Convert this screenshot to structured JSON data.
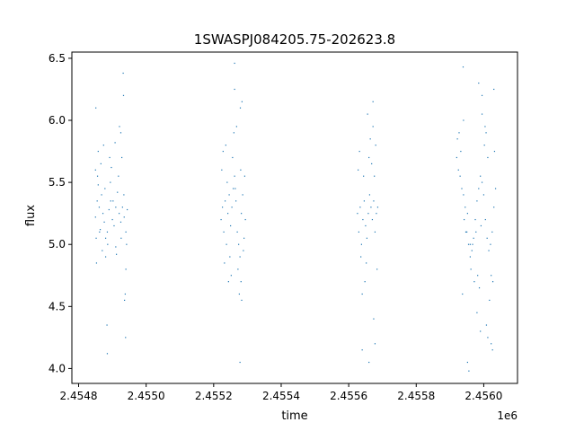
{
  "chart_data": {
    "type": "scatter",
    "title": "1SWASPJ084205.75-202623.8",
    "xlabel": "time",
    "ylabel": "flux",
    "x_offset_label": "1e6",
    "xlim": [
      2454780,
      2456100
    ],
    "ylim": [
      3.88,
      6.55
    ],
    "x_ticks": [
      {
        "value": 2454800,
        "label": "2.4548"
      },
      {
        "value": 2455000,
        "label": "2.4550"
      },
      {
        "value": 2455200,
        "label": "2.4552"
      },
      {
        "value": 2455400,
        "label": "2.4554"
      },
      {
        "value": 2455600,
        "label": "2.4556"
      },
      {
        "value": 2455800,
        "label": "2.4558"
      },
      {
        "value": 2456000,
        "label": "2.4560"
      }
    ],
    "y_ticks": [
      {
        "value": 4.0,
        "label": "4.0"
      },
      {
        "value": 4.5,
        "label": "4.5"
      },
      {
        "value": 5.0,
        "label": "5.0"
      },
      {
        "value": 5.5,
        "label": "5.5"
      },
      {
        "value": 6.0,
        "label": "6.0"
      },
      {
        "value": 6.5,
        "label": "6.5"
      }
    ],
    "grid": false,
    "legend": "none",
    "marker_color": "#1f77b4",
    "series": [
      {
        "x": [
          2454850,
          2454852,
          2454855,
          2454858,
          2454861,
          2454864,
          2454868,
          2454872,
          2454876,
          2454880,
          2454885,
          2454890,
          2454895,
          2454900,
          2454905,
          2454910,
          2454915,
          2454920,
          2454925,
          2454930,
          2454935,
          2454940,
          2454944,
          2454850,
          2454856,
          2454862,
          2454870,
          2454878,
          2454886,
          2454894,
          2454902,
          2454910,
          2454918,
          2454926,
          2454934,
          2454942,
          2454853,
          2454866,
          2454880,
          2454897,
          2454912,
          2454928,
          2454940,
          2454858,
          2454874,
          2454892,
          2454908,
          2454925,
          2454938,
          2454851,
          2454884,
          2454921,
          2454932,
          2454936,
          2454939,
          2454885,
          2454933,
          2455222,
          2455226,
          2455230,
          2455234,
          2455238,
          2455242,
          2455246,
          2455250,
          2455254,
          2455258,
          2455262,
          2455266,
          2455270,
          2455274,
          2455278,
          2455282,
          2455286,
          2455290,
          2455294,
          2455224,
          2455232,
          2455240,
          2455248,
          2455256,
          2455264,
          2455272,
          2455280,
          2455288,
          2455228,
          2455244,
          2455260,
          2455276,
          2455292,
          2455236,
          2455268,
          2455284,
          2455252,
          2455279,
          2455262,
          2455281,
          2455283,
          2455262,
          2455278,
          2455626,
          2455630,
          2455634,
          2455638,
          2455642,
          2455646,
          2455650,
          2455654,
          2455658,
          2455662,
          2455666,
          2455670,
          2455674,
          2455678,
          2455682,
          2455686,
          2455628,
          2455636,
          2455644,
          2455652,
          2455660,
          2455668,
          2455676,
          2455684,
          2455632,
          2455648,
          2455664,
          2455680,
          2455640,
          2455672,
          2455656,
          2455674,
          2455678,
          2455640,
          2455672,
          2455660,
          2455920,
          2455925,
          2455930,
          2455935,
          2455940,
          2455945,
          2455950,
          2455955,
          2455960,
          2455965,
          2455970,
          2455975,
          2455980,
          2455985,
          2455990,
          2455995,
          2456000,
          2456005,
          2456010,
          2456015,
          2456020,
          2456025,
          2456030,
          2456035,
          2455922,
          2455932,
          2455942,
          2455952,
          2455962,
          2455972,
          2455982,
          2455992,
          2456002,
          2456012,
          2456022,
          2456032,
          2455927,
          2455947,
          2455967,
          2455987,
          2456007,
          2456027,
          2455937,
          2455977,
          2456017,
          2455940,
          2455960,
          2455980,
          2455990,
          2455995,
          2456004,
          2456008,
          2456012,
          2456022,
          2455985,
          2456026,
          2455939,
          2455956,
          2455995,
          2455952,
          2456030
        ],
        "y": [
          5.22,
          5.05,
          5.35,
          5.48,
          5.3,
          5.12,
          5.4,
          5.25,
          5.18,
          5.05,
          5.1,
          5.28,
          5.35,
          5.2,
          5.15,
          5.3,
          5.42,
          5.25,
          5.18,
          5.3,
          5.22,
          5.1,
          5.28,
          5.6,
          5.55,
          5.1,
          4.95,
          5.45,
          5.0,
          5.5,
          5.35,
          4.98,
          5.55,
          5.05,
          5.4,
          5.0,
          4.85,
          5.65,
          4.9,
          5.62,
          4.92,
          5.7,
          4.8,
          5.75,
          5.8,
          5.7,
          5.82,
          5.9,
          4.6,
          6.1,
          4.35,
          5.95,
          6.38,
          4.55,
          4.25,
          4.12,
          6.2,
          5.2,
          5.3,
          5.1,
          5.35,
          5.0,
          5.25,
          5.4,
          5.15,
          5.3,
          5.45,
          5.55,
          5.35,
          5.1,
          5.0,
          4.9,
          5.25,
          5.4,
          5.05,
          5.2,
          5.6,
          4.85,
          5.5,
          4.9,
          5.7,
          5.45,
          4.8,
          5.6,
          4.95,
          5.75,
          4.7,
          5.9,
          4.6,
          5.55,
          5.8,
          5.95,
          6.15,
          4.75,
          6.1,
          6.25,
          4.7,
          4.55,
          6.46,
          4.05,
          5.25,
          5.1,
          5.3,
          5.0,
          5.2,
          5.35,
          5.15,
          5.05,
          5.25,
          5.4,
          5.3,
          5.2,
          5.35,
          5.1,
          5.25,
          5.3,
          5.6,
          4.9,
          5.55,
          4.85,
          5.7,
          5.65,
          5.55,
          4.8,
          5.75,
          4.7,
          5.85,
          5.8,
          4.6,
          5.95,
          6.05,
          4.4,
          4.2,
          4.15,
          6.15,
          4.05,
          5.7,
          5.6,
          5.55,
          5.45,
          5.4,
          5.3,
          5.1,
          5.0,
          4.9,
          4.95,
          5.05,
          5.2,
          5.35,
          5.45,
          5.55,
          5.5,
          5.4,
          5.2,
          5.05,
          4.95,
          5.0,
          5.1,
          5.3,
          5.45,
          5.85,
          5.75,
          5.2,
          5.25,
          4.8,
          4.7,
          4.75,
          5.15,
          5.8,
          5.7,
          4.75,
          5.75,
          5.9,
          5.1,
          5.0,
          4.65,
          5.9,
          4.7,
          4.6,
          5.1,
          4.55,
          6.0,
          5.0,
          4.45,
          4.3,
          6.05,
          5.95,
          4.35,
          4.25,
          4.2,
          6.3,
          4.15,
          6.43,
          3.98,
          6.2,
          4.05,
          6.25
        ]
      }
    ]
  }
}
